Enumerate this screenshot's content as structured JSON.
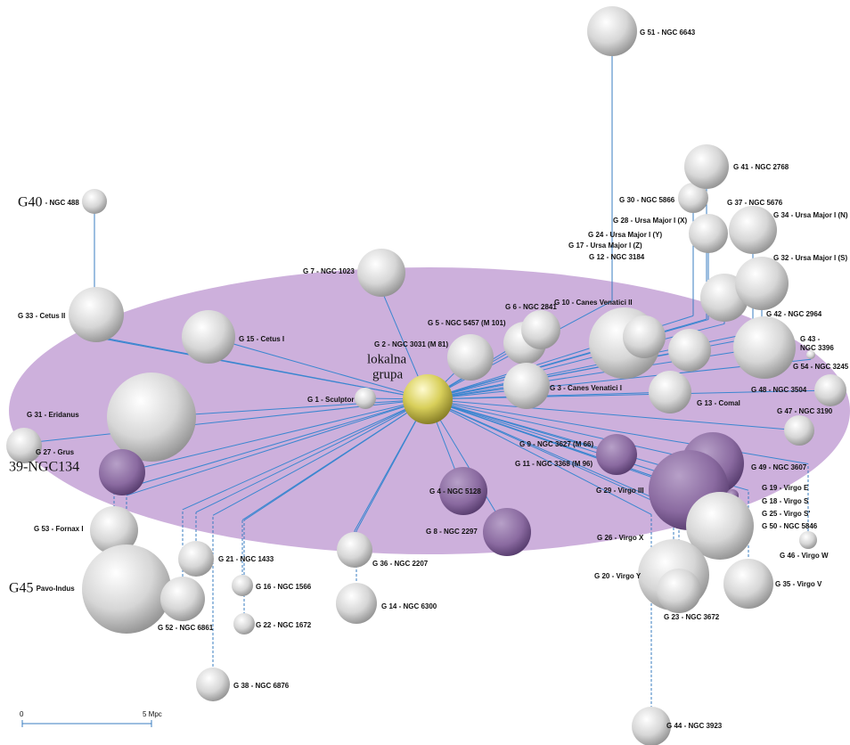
{
  "center": {
    "label": [
      "lokalna",
      "grupa"
    ]
  },
  "nodes": [
    {
      "label": "G 51 - NGC 6643"
    },
    {
      "prefix": "G40",
      "label": "- NGC 488"
    },
    {
      "label": "G 33 - Cetus II"
    },
    {
      "label": "G 31 - Eridanus"
    },
    {
      "label": "39-NGC134"
    },
    {
      "label": "G 27 - Grus"
    },
    {
      "label": "G 53 - Fornax I"
    },
    {
      "prefix": "G45",
      "label": "Pavo-Indus"
    },
    {
      "label": "G 52 - NGC 6861"
    },
    {
      "label": "G 7 - NGC 1023"
    },
    {
      "label": "G 15 - Cetus I"
    },
    {
      "label": "G 1 - Sculptor"
    },
    {
      "label": "G 2 - NGC 3031 (M 81)"
    },
    {
      "label": "G 5 - NGC 5457 (M 101)"
    },
    {
      "label": "G 6 - NGC 2841"
    },
    {
      "label": "G 10 - Canes Venatici II"
    },
    {
      "label": "G 12 - NGC 3184"
    },
    {
      "label": "G 17 - Ursa Major I (Z)"
    },
    {
      "label": "G 24 - Ursa Major I (Y)"
    },
    {
      "label": "G 28 - Ursa Major I (X)"
    },
    {
      "label": "G 30 - NGC 5866"
    },
    {
      "label": "G 41 - NGC 2768"
    },
    {
      "label": "G 37 - NGC 5676"
    },
    {
      "label": "G 34 - Ursa Major I (N)"
    },
    {
      "label": "G 32 - Ursa Major I (S)"
    },
    {
      "label": "G 42 - NGC 2964"
    },
    {
      "label": "G 43 -",
      "label2": "NGC 3396"
    },
    {
      "label": "G 54 - NGC 3245"
    },
    {
      "label": "G 48 - NGC 3504"
    },
    {
      "label": "G 13 - Comal"
    },
    {
      "label": "G 3 - Canes Venatici I"
    },
    {
      "label": "G 47 - NGC 3190"
    },
    {
      "label": "G 9 - NGC 3627 (M 66)"
    },
    {
      "label": "G 11 - NGC 3368 (M 96)"
    },
    {
      "label": "G 49 - NGC 3607"
    },
    {
      "label": "G 19 - Virgo E"
    },
    {
      "label": "G 18 - Virgo S"
    },
    {
      "label": "G 29 - Virgo III"
    },
    {
      "label": "G 25 - Virgo S'"
    },
    {
      "label": "G 50 - NGC 5846"
    },
    {
      "label": "G 46 - Virgo W"
    },
    {
      "label": "G 26 - Virgo X"
    },
    {
      "label": "G 20 - Virgo Y"
    },
    {
      "label": "G 23 - NGC 3672"
    },
    {
      "label": "G 35 - Virgo V"
    },
    {
      "label": "G 44 - NGC 3923"
    },
    {
      "label": "G 4 - NGC 5128"
    },
    {
      "label": "G 8 - NGC 2297"
    },
    {
      "label": "G 36 - NGC 2207"
    },
    {
      "label": "G 14 - NGC 6300"
    },
    {
      "label": "G 21 - NGC 1433"
    },
    {
      "label": "G 16 - NGC 1566"
    },
    {
      "label": "G 22 - NGC 1672"
    },
    {
      "label": "G 38 - NGC 6876"
    }
  ],
  "scale": {
    "start": "0",
    "end": "5 Mpc"
  }
}
